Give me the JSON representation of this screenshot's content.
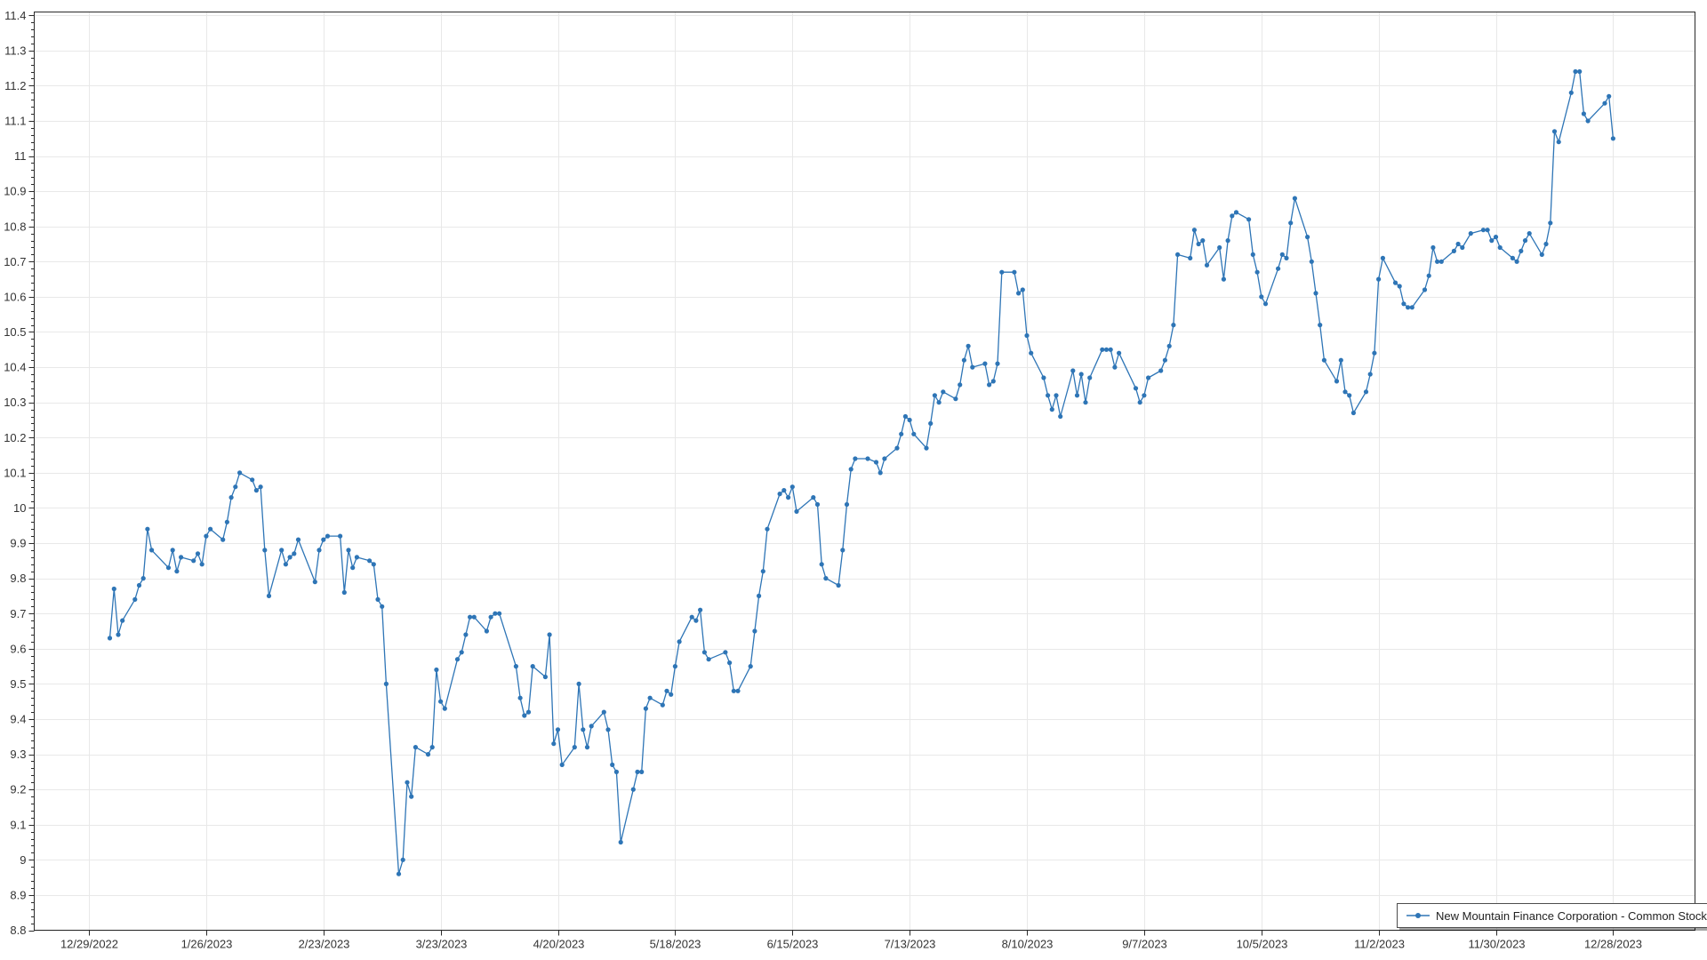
{
  "window": {
    "background": "#ffffff"
  },
  "legend": {
    "label": "New Mountain Finance Corporation - Common Stock",
    "position": "bottom-right"
  },
  "colors": {
    "series": "#2E75B6",
    "grid": "#e8e8e8",
    "axis": "#2a2a2a",
    "tick_label": "#333333",
    "legend_border": "#4d4d4d",
    "legend_shadow": "rgba(0,0,0,0.35)",
    "background": "#ffffff"
  },
  "chart_data": {
    "type": "line",
    "title": "",
    "xlabel": "",
    "ylabel": "",
    "grid": true,
    "marker": "circle",
    "legend_position": "bottom-right",
    "x_axis": {
      "kind": "date",
      "start": "12/29/2022",
      "end_of_plot": "1/14/2024",
      "tick_labels": [
        "12/29/2022",
        "1/26/2023",
        "2/23/2023",
        "3/23/2023",
        "4/20/2023",
        "5/18/2023",
        "6/15/2023",
        "7/13/2023",
        "8/10/2023",
        "9/7/2023",
        "10/5/2023",
        "11/2/2023",
        "11/30/2023",
        "12/28/2023"
      ],
      "days_between_ticks": 28
    },
    "y_axis": {
      "min": 8.8,
      "max": 11.4,
      "tick_step": 0.1,
      "minor_tick_step": 0.02,
      "labels": [
        "8.8",
        "8.9",
        "9",
        "9.1",
        "9.2",
        "9.3",
        "9.4",
        "9.5",
        "9.6",
        "9.7",
        "9.8",
        "9.9",
        "10",
        "10.1",
        "10.2",
        "10.3",
        "10.4",
        "10.5",
        "10.6",
        "10.7",
        "10.8",
        "10.9",
        "11",
        "11.1",
        "11.2",
        "11.3",
        "11.4"
      ]
    },
    "series": [
      {
        "name": "New Mountain Finance Corporation - Common Stock",
        "color": "#2E75B6",
        "year": 2023,
        "points": [
          [
            "1/3",
            9.63
          ],
          [
            "1/4",
            9.77
          ],
          [
            "1/5",
            9.64
          ],
          [
            "1/6",
            9.68
          ],
          [
            "1/9",
            9.74
          ],
          [
            "1/10",
            9.78
          ],
          [
            "1/11",
            9.8
          ],
          [
            "1/12",
            9.94
          ],
          [
            "1/13",
            9.88
          ],
          [
            "1/17",
            9.83
          ],
          [
            "1/18",
            9.88
          ],
          [
            "1/19",
            9.82
          ],
          [
            "1/20",
            9.86
          ],
          [
            "1/23",
            9.85
          ],
          [
            "1/24",
            9.87
          ],
          [
            "1/25",
            9.84
          ],
          [
            "1/26",
            9.92
          ],
          [
            "1/27",
            9.94
          ],
          [
            "1/30",
            9.91
          ],
          [
            "1/31",
            9.96
          ],
          [
            "2/1",
            10.03
          ],
          [
            "2/2",
            10.06
          ],
          [
            "2/3",
            10.1
          ],
          [
            "2/6",
            10.08
          ],
          [
            "2/7",
            10.05
          ],
          [
            "2/8",
            10.06
          ],
          [
            "2/9",
            9.88
          ],
          [
            "2/10",
            9.75
          ],
          [
            "2/13",
            9.88
          ],
          [
            "2/14",
            9.84
          ],
          [
            "2/15",
            9.86
          ],
          [
            "2/16",
            9.87
          ],
          [
            "2/17",
            9.91
          ],
          [
            "2/21",
            9.79
          ],
          [
            "2/22",
            9.88
          ],
          [
            "2/23",
            9.91
          ],
          [
            "2/24",
            9.92
          ],
          [
            "2/27",
            9.92
          ],
          [
            "2/28",
            9.76
          ],
          [
            "3/1",
            9.88
          ],
          [
            "3/2",
            9.83
          ],
          [
            "3/3",
            9.86
          ],
          [
            "3/6",
            9.85
          ],
          [
            "3/7",
            9.84
          ],
          [
            "3/8",
            9.74
          ],
          [
            "3/9",
            9.72
          ],
          [
            "3/10",
            9.5
          ],
          [
            "3/13",
            8.96
          ],
          [
            "3/14",
            9.0
          ],
          [
            "3/15",
            9.22
          ],
          [
            "3/16",
            9.18
          ],
          [
            "3/17",
            9.32
          ],
          [
            "3/20",
            9.3
          ],
          [
            "3/21",
            9.32
          ],
          [
            "3/22",
            9.54
          ],
          [
            "3/23",
            9.45
          ],
          [
            "3/24",
            9.43
          ],
          [
            "3/27",
            9.57
          ],
          [
            "3/28",
            9.59
          ],
          [
            "3/29",
            9.64
          ],
          [
            "3/30",
            9.69
          ],
          [
            "3/31",
            9.69
          ],
          [
            "4/3",
            9.65
          ],
          [
            "4/4",
            9.69
          ],
          [
            "4/5",
            9.7
          ],
          [
            "4/6",
            9.7
          ],
          [
            "4/10",
            9.55
          ],
          [
            "4/11",
            9.46
          ],
          [
            "4/12",
            9.41
          ],
          [
            "4/13",
            9.42
          ],
          [
            "4/14",
            9.55
          ],
          [
            "4/17",
            9.52
          ],
          [
            "4/18",
            9.64
          ],
          [
            "4/19",
            9.33
          ],
          [
            "4/20",
            9.37
          ],
          [
            "4/21",
            9.27
          ],
          [
            "4/24",
            9.32
          ],
          [
            "4/25",
            9.5
          ],
          [
            "4/26",
            9.37
          ],
          [
            "4/27",
            9.32
          ],
          [
            "4/28",
            9.38
          ],
          [
            "5/1",
            9.42
          ],
          [
            "5/2",
            9.37
          ],
          [
            "5/3",
            9.27
          ],
          [
            "5/4",
            9.25
          ],
          [
            "5/5",
            9.05
          ],
          [
            "5/8",
            9.2
          ],
          [
            "5/9",
            9.25
          ],
          [
            "5/10",
            9.25
          ],
          [
            "5/11",
            9.43
          ],
          [
            "5/12",
            9.46
          ],
          [
            "5/15",
            9.44
          ],
          [
            "5/16",
            9.48
          ],
          [
            "5/17",
            9.47
          ],
          [
            "5/18",
            9.55
          ],
          [
            "5/19",
            9.62
          ],
          [
            "5/22",
            9.69
          ],
          [
            "5/23",
            9.68
          ],
          [
            "5/24",
            9.71
          ],
          [
            "5/25",
            9.59
          ],
          [
            "5/26",
            9.57
          ],
          [
            "5/30",
            9.59
          ],
          [
            "5/31",
            9.56
          ],
          [
            "6/1",
            9.48
          ],
          [
            "6/2",
            9.48
          ],
          [
            "6/5",
            9.55
          ],
          [
            "6/6",
            9.65
          ],
          [
            "6/7",
            9.75
          ],
          [
            "6/8",
            9.82
          ],
          [
            "6/9",
            9.94
          ],
          [
            "6/12",
            10.04
          ],
          [
            "6/13",
            10.05
          ],
          [
            "6/14",
            10.03
          ],
          [
            "6/15",
            10.06
          ],
          [
            "6/16",
            9.99
          ],
          [
            "6/20",
            10.03
          ],
          [
            "6/21",
            10.01
          ],
          [
            "6/22",
            9.84
          ],
          [
            "6/23",
            9.8
          ],
          [
            "6/26",
            9.78
          ],
          [
            "6/27",
            9.88
          ],
          [
            "6/28",
            10.01
          ],
          [
            "6/29",
            10.11
          ],
          [
            "6/30",
            10.14
          ],
          [
            "7/3",
            10.14
          ],
          [
            "7/5",
            10.13
          ],
          [
            "7/6",
            10.1
          ],
          [
            "7/7",
            10.14
          ],
          [
            "7/10",
            10.17
          ],
          [
            "7/11",
            10.21
          ],
          [
            "7/12",
            10.26
          ],
          [
            "7/13",
            10.25
          ],
          [
            "7/14",
            10.21
          ],
          [
            "7/17",
            10.17
          ],
          [
            "7/18",
            10.24
          ],
          [
            "7/19",
            10.32
          ],
          [
            "7/20",
            10.3
          ],
          [
            "7/21",
            10.33
          ],
          [
            "7/24",
            10.31
          ],
          [
            "7/25",
            10.35
          ],
          [
            "7/26",
            10.42
          ],
          [
            "7/27",
            10.46
          ],
          [
            "7/28",
            10.4
          ],
          [
            "7/31",
            10.41
          ],
          [
            "8/1",
            10.35
          ],
          [
            "8/2",
            10.36
          ],
          [
            "8/3",
            10.41
          ],
          [
            "8/4",
            10.67
          ],
          [
            "8/7",
            10.67
          ],
          [
            "8/8",
            10.61
          ],
          [
            "8/9",
            10.62
          ],
          [
            "8/10",
            10.49
          ],
          [
            "8/11",
            10.44
          ],
          [
            "8/14",
            10.37
          ],
          [
            "8/15",
            10.32
          ],
          [
            "8/16",
            10.28
          ],
          [
            "8/17",
            10.32
          ],
          [
            "8/18",
            10.26
          ],
          [
            "8/21",
            10.39
          ],
          [
            "8/22",
            10.32
          ],
          [
            "8/23",
            10.38
          ],
          [
            "8/24",
            10.3
          ],
          [
            "8/25",
            10.37
          ],
          [
            "8/28",
            10.45
          ],
          [
            "8/29",
            10.45
          ],
          [
            "8/30",
            10.45
          ],
          [
            "8/31",
            10.4
          ],
          [
            "9/1",
            10.44
          ],
          [
            "9/5",
            10.34
          ],
          [
            "9/6",
            10.3
          ],
          [
            "9/7",
            10.32
          ],
          [
            "9/8",
            10.37
          ],
          [
            "9/11",
            10.39
          ],
          [
            "9/12",
            10.42
          ],
          [
            "9/13",
            10.46
          ],
          [
            "9/14",
            10.52
          ],
          [
            "9/15",
            10.72
          ],
          [
            "9/18",
            10.71
          ],
          [
            "9/19",
            10.79
          ],
          [
            "9/20",
            10.75
          ],
          [
            "9/21",
            10.76
          ],
          [
            "9/22",
            10.69
          ],
          [
            "9/25",
            10.74
          ],
          [
            "9/26",
            10.65
          ],
          [
            "9/27",
            10.76
          ],
          [
            "9/28",
            10.83
          ],
          [
            "9/29",
            10.84
          ],
          [
            "10/2",
            10.82
          ],
          [
            "10/3",
            10.72
          ],
          [
            "10/4",
            10.67
          ],
          [
            "10/5",
            10.6
          ],
          [
            "10/6",
            10.58
          ],
          [
            "10/9",
            10.68
          ],
          [
            "10/10",
            10.72
          ],
          [
            "10/11",
            10.71
          ],
          [
            "10/12",
            10.81
          ],
          [
            "10/13",
            10.88
          ],
          [
            "10/16",
            10.77
          ],
          [
            "10/17",
            10.7
          ],
          [
            "10/18",
            10.61
          ],
          [
            "10/19",
            10.52
          ],
          [
            "10/20",
            10.42
          ],
          [
            "10/23",
            10.36
          ],
          [
            "10/24",
            10.42
          ],
          [
            "10/25",
            10.33
          ],
          [
            "10/26",
            10.32
          ],
          [
            "10/27",
            10.27
          ],
          [
            "10/30",
            10.33
          ],
          [
            "10/31",
            10.38
          ],
          [
            "11/1",
            10.44
          ],
          [
            "11/2",
            10.65
          ],
          [
            "11/3",
            10.71
          ],
          [
            "11/6",
            10.64
          ],
          [
            "11/7",
            10.63
          ],
          [
            "11/8",
            10.58
          ],
          [
            "11/9",
            10.57
          ],
          [
            "11/10",
            10.57
          ],
          [
            "11/13",
            10.62
          ],
          [
            "11/14",
            10.66
          ],
          [
            "11/15",
            10.74
          ],
          [
            "11/16",
            10.7
          ],
          [
            "11/17",
            10.7
          ],
          [
            "11/20",
            10.73
          ],
          [
            "11/21",
            10.75
          ],
          [
            "11/22",
            10.74
          ],
          [
            "11/24",
            10.78
          ],
          [
            "11/27",
            10.79
          ],
          [
            "11/28",
            10.79
          ],
          [
            "11/29",
            10.76
          ],
          [
            "11/30",
            10.77
          ],
          [
            "12/1",
            10.74
          ],
          [
            "12/4",
            10.71
          ],
          [
            "12/5",
            10.7
          ],
          [
            "12/6",
            10.73
          ],
          [
            "12/7",
            10.76
          ],
          [
            "12/8",
            10.78
          ],
          [
            "12/11",
            10.72
          ],
          [
            "12/12",
            10.75
          ],
          [
            "12/13",
            10.81
          ],
          [
            "12/14",
            11.07
          ],
          [
            "12/15",
            11.04
          ],
          [
            "12/18",
            11.18
          ],
          [
            "12/19",
            11.24
          ],
          [
            "12/20",
            11.24
          ],
          [
            "12/21",
            11.12
          ],
          [
            "12/22",
            11.1
          ],
          [
            "12/26",
            11.15
          ],
          [
            "12/27",
            11.17
          ],
          [
            "12/28",
            11.05
          ]
        ]
      }
    ]
  }
}
